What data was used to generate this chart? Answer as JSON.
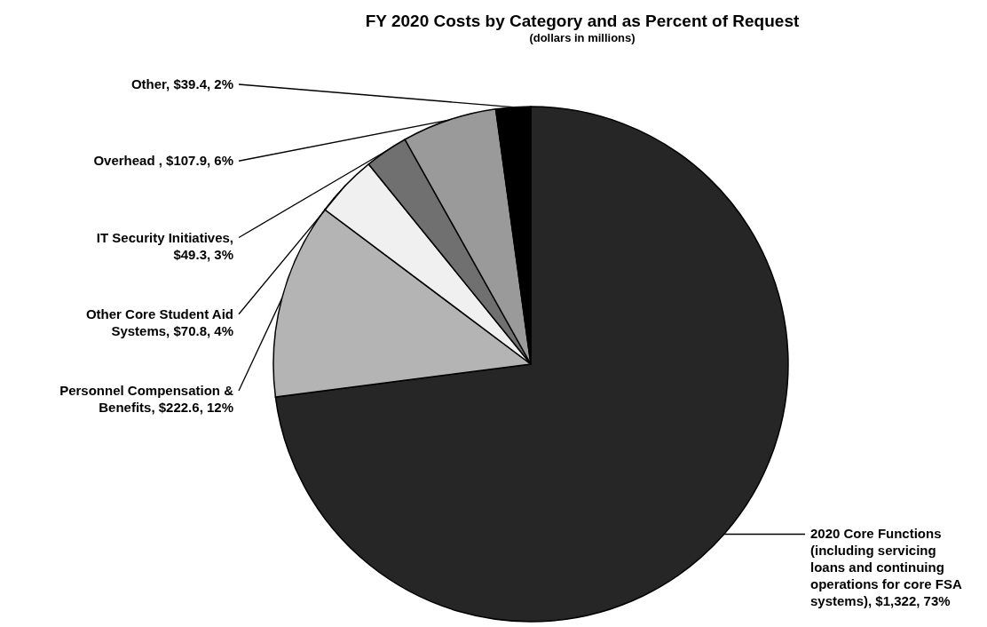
{
  "chart_data": {
    "type": "pie",
    "title": "FY 2020 Costs by Category and as Percent of Request",
    "subtitle": "(dollars in millions)",
    "categories": [
      "2020 Core Functions (including servicing loans and continuing operations for core FSA systems)",
      "Personnel Compensation & Benefits",
      "Other Core Student Aid Systems",
      "IT Security Initiatives",
      "Overhead ",
      "Other"
    ],
    "values": [
      1322,
      222.6,
      70.8,
      49.3,
      107.9,
      39.4
    ],
    "value_labels": [
      ", $1,322, 73%",
      ", $222.6, 12%",
      ", $70.8, 4%",
      ", $49.3, 3%",
      ", $107.9, 6%",
      ",  $39.4, 2%"
    ],
    "colors": [
      "#262626",
      "#b4b4b4",
      "#f0f0f0",
      "#707070",
      "#9a9a9a",
      "#000000"
    ],
    "legend": false
  }
}
